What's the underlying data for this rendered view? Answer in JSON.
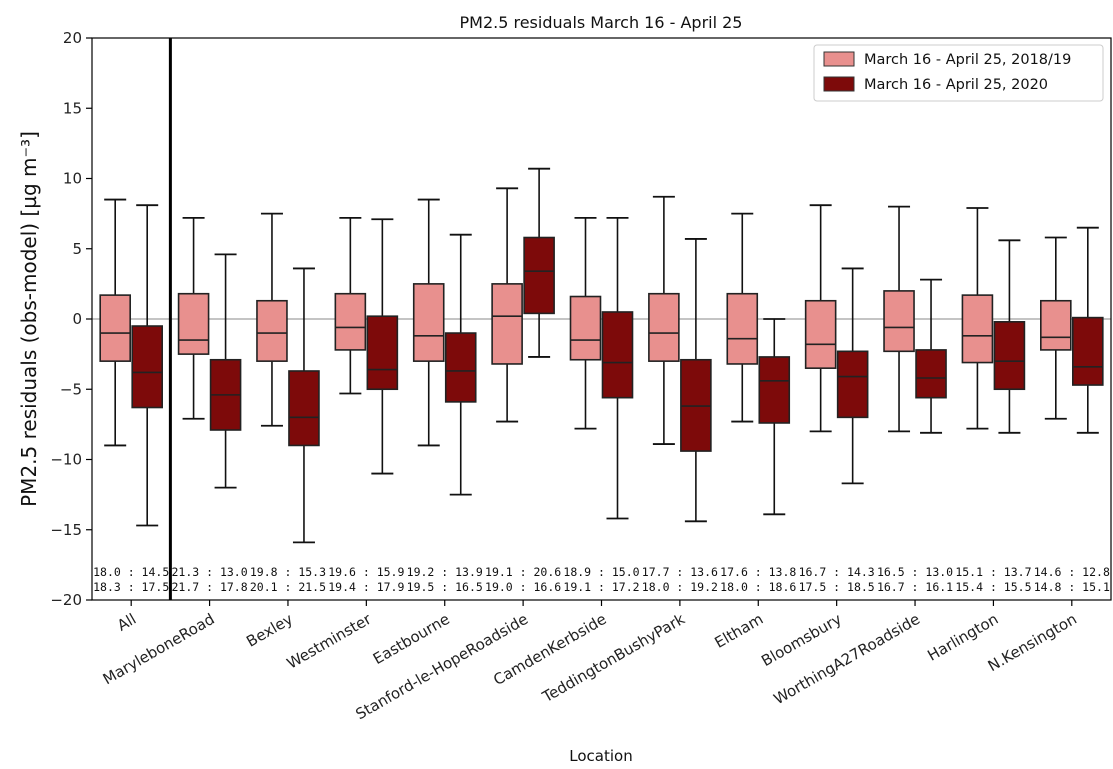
{
  "chart_data": {
    "type": "box",
    "title": "PM2.5 residuals March 16 - April 25",
    "xlabel": "Location",
    "ylabel": "PM2.5 residuals (obs-model) [µg m⁻³]",
    "ylim": [
      -20,
      20
    ],
    "yticks": [
      -20,
      -15,
      -10,
      -5,
      0,
      5,
      10,
      15,
      20
    ],
    "zero_line": true,
    "separator_after_index": 0,
    "legend_position": "top-right",
    "categories": [
      "All",
      "MaryleboneRoad",
      "Bexley",
      "Westminster",
      "Eastbourne",
      "Stanford-le-HopeRoadside",
      "CamdenKerbside",
      "TeddingtonBushyPark",
      "Eltham",
      "Bloomsbury",
      "WorthingA27Roadside",
      "Harlington",
      "N.Kensington"
    ],
    "series": [
      {
        "name": "March 16 - April 25, 2018/19",
        "color": "#e8908e",
        "boxes": [
          {
            "whisker_low": -9.0,
            "q1": -3.0,
            "median": -1.0,
            "q3": 1.7,
            "whisker_high": 8.5
          },
          {
            "whisker_low": -7.1,
            "q1": -2.5,
            "median": -1.5,
            "q3": 1.8,
            "whisker_high": 7.2
          },
          {
            "whisker_low": -7.6,
            "q1": -3.0,
            "median": -1.0,
            "q3": 1.3,
            "whisker_high": 7.5
          },
          {
            "whisker_low": -5.3,
            "q1": -2.2,
            "median": -0.6,
            "q3": 1.8,
            "whisker_high": 7.2
          },
          {
            "whisker_low": -9.0,
            "q1": -3.0,
            "median": -1.2,
            "q3": 2.5,
            "whisker_high": 8.5
          },
          {
            "whisker_low": -7.3,
            "q1": -3.2,
            "median": 0.2,
            "q3": 2.5,
            "whisker_high": 9.3
          },
          {
            "whisker_low": -7.8,
            "q1": -2.9,
            "median": -1.5,
            "q3": 1.6,
            "whisker_high": 7.2
          },
          {
            "whisker_low": -8.9,
            "q1": -3.0,
            "median": -1.0,
            "q3": 1.8,
            "whisker_high": 8.7
          },
          {
            "whisker_low": -7.3,
            "q1": -3.2,
            "median": -1.4,
            "q3": 1.8,
            "whisker_high": 7.5
          },
          {
            "whisker_low": -8.0,
            "q1": -3.5,
            "median": -1.8,
            "q3": 1.3,
            "whisker_high": 8.1
          },
          {
            "whisker_low": -8.0,
            "q1": -2.3,
            "median": -0.6,
            "q3": 2.0,
            "whisker_high": 8.0
          },
          {
            "whisker_low": -7.8,
            "q1": -3.1,
            "median": -1.2,
            "q3": 1.7,
            "whisker_high": 7.9
          },
          {
            "whisker_low": -7.1,
            "q1": -2.2,
            "median": -1.3,
            "q3": 1.3,
            "whisker_high": 5.8
          }
        ]
      },
      {
        "name": "March 16 - April 25, 2020",
        "color": "#7d0a0a",
        "boxes": [
          {
            "whisker_low": -14.7,
            "q1": -6.3,
            "median": -3.8,
            "q3": -0.5,
            "whisker_high": 8.1
          },
          {
            "whisker_low": -12.0,
            "q1": -7.9,
            "median": -5.4,
            "q3": -2.9,
            "whisker_high": 4.6
          },
          {
            "whisker_low": -15.9,
            "q1": -9.0,
            "median": -7.0,
            "q3": -3.7,
            "whisker_high": 3.6
          },
          {
            "whisker_low": -11.0,
            "q1": -5.0,
            "median": -3.6,
            "q3": 0.2,
            "whisker_high": 7.1
          },
          {
            "whisker_low": -12.5,
            "q1": -5.9,
            "median": -3.7,
            "q3": -1.0,
            "whisker_high": 6.0
          },
          {
            "whisker_low": -2.7,
            "q1": 0.4,
            "median": 3.4,
            "q3": 5.8,
            "whisker_high": 10.7
          },
          {
            "whisker_low": -14.2,
            "q1": -5.6,
            "median": -3.1,
            "q3": 0.5,
            "whisker_high": 7.2
          },
          {
            "whisker_low": -14.4,
            "q1": -9.4,
            "median": -6.2,
            "q3": -2.9,
            "whisker_high": 5.7
          },
          {
            "whisker_low": -13.9,
            "q1": -7.4,
            "median": -4.4,
            "q3": -2.7,
            "whisker_high": 0.0
          },
          {
            "whisker_low": -11.7,
            "q1": -7.0,
            "median": -4.1,
            "q3": -2.3,
            "whisker_high": 3.6
          },
          {
            "whisker_low": -8.1,
            "q1": -5.6,
            "median": -4.2,
            "q3": -2.2,
            "whisker_high": 2.8
          },
          {
            "whisker_low": -8.1,
            "q1": -5.0,
            "median": -3.0,
            "q3": -0.2,
            "whisker_high": 5.6
          },
          {
            "whisker_low": -8.1,
            "q1": -4.7,
            "median": -3.4,
            "q3": 0.1,
            "whisker_high": 6.5
          }
        ]
      }
    ],
    "annotations": {
      "row1": [
        "18.0 : 14.5",
        "21.3 : 13.0",
        "19.8 : 15.3",
        "19.6 : 15.9",
        "19.2 : 13.9",
        "19.1 : 20.6",
        "18.9 : 15.0",
        "17.7 : 13.6",
        "17.6 : 13.8",
        "16.7 : 14.3",
        "16.5 : 13.0",
        "15.1 : 13.7",
        "14.6 : 12.8"
      ],
      "row2": [
        "18.3 : 17.5",
        "21.7 : 17.8",
        "20.1 : 21.5",
        "19.4 : 17.9",
        "19.5 : 16.5",
        "19.0 : 16.6",
        "19.1 : 17.2",
        "18.0 : 19.2",
        "18.0 : 18.6",
        "17.5 : 18.5",
        "16.7 : 16.1",
        "15.4 : 15.5",
        "14.8 : 15.1"
      ]
    }
  }
}
